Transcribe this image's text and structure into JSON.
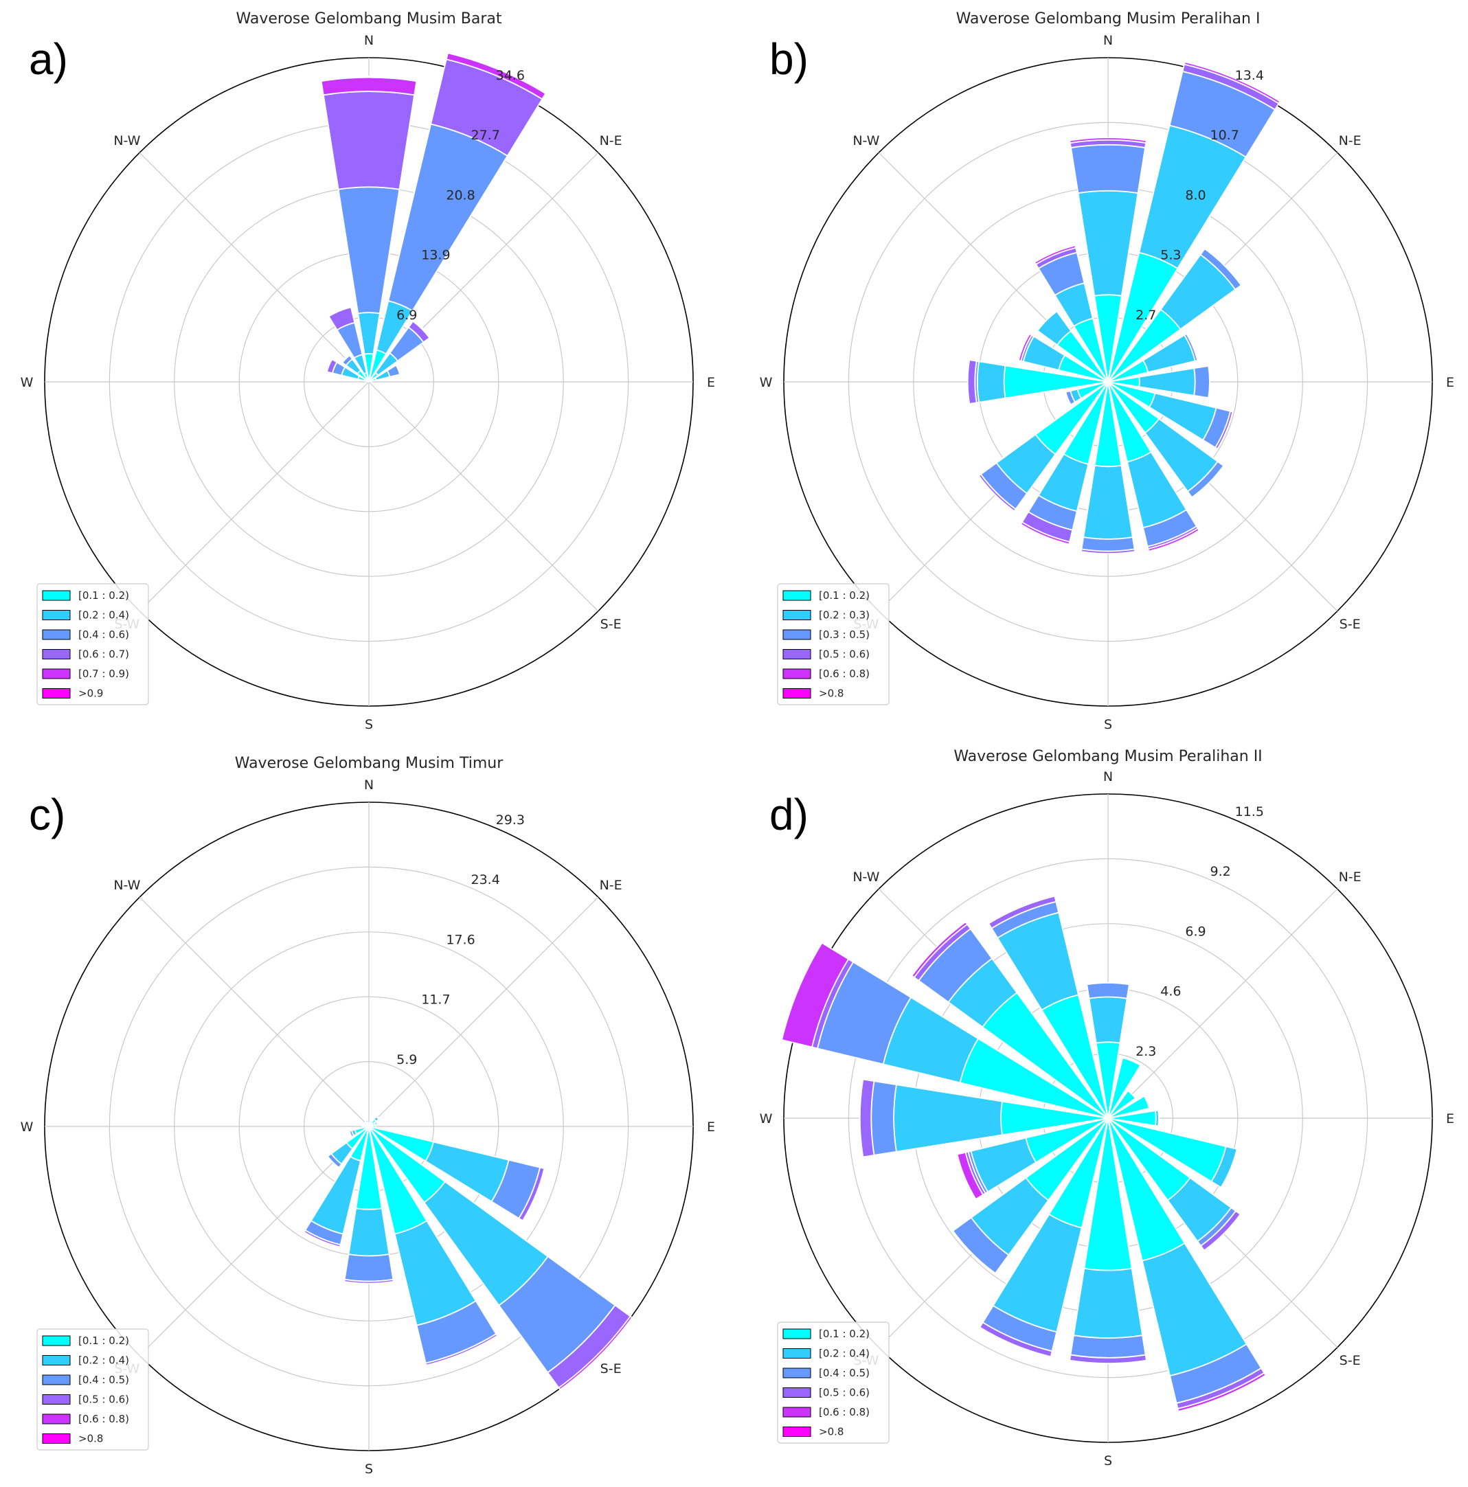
{
  "chart_data": [
    {
      "type": "windrose",
      "panel_label": "a)",
      "title": "Waverose Gelombang Musim Barat",
      "directions": [
        "N",
        "N-E",
        "E",
        "S-E",
        "S",
        "S-W",
        "W",
        "N-W"
      ],
      "sectors_deg": [
        0,
        22.5,
        45,
        67.5,
        90,
        112.5,
        135,
        157.5,
        180,
        202.5,
        225,
        247.5,
        270,
        292.5,
        315,
        337.5
      ],
      "radial_ticks": [
        "6.9",
        "13.9",
        "20.8",
        "27.7",
        "34.6"
      ],
      "r_max": 34.6,
      "bins": [
        "[0.1 : 0.2)",
        "[0.2 : 0.4)",
        "[0.4 : 0.6)",
        "[0.6 : 0.7)",
        "[0.7 : 0.9)",
        ">0.9"
      ],
      "bin_colors": [
        "#00ffff",
        "#33ccff",
        "#6699ff",
        "#9966ff",
        "#cc33ff",
        "#ff00ff"
      ],
      "cumulative": [
        [
          3.0,
          7.4,
          20.8,
          31.0,
          32.5,
          32.6
        ],
        [
          3.5,
          8.9,
          28.3,
          35.4,
          36.1,
          36.2
        ],
        [
          1.2,
          3.8,
          7.2,
          8.0,
          8.1,
          8.1
        ],
        [
          0.8,
          2.3,
          3.4,
          3.5,
          3.5,
          3.5
        ],
        [
          0,
          0,
          0,
          0,
          0,
          0
        ],
        [
          0,
          0,
          0,
          0,
          0,
          0
        ],
        [
          0,
          0,
          0,
          0,
          0,
          0
        ],
        [
          0,
          0,
          0,
          0,
          0,
          0
        ],
        [
          0,
          0,
          0,
          0,
          0,
          0
        ],
        [
          0,
          0,
          0,
          0,
          0,
          0
        ],
        [
          0,
          0,
          0,
          0,
          0,
          0
        ],
        [
          0,
          0,
          0,
          0,
          0,
          0
        ],
        [
          0,
          0,
          0,
          0,
          0,
          0
        ],
        [
          1.2,
          3.0,
          4.0,
          4.6,
          4.6,
          4.6
        ],
        [
          1.5,
          3.0,
          3.5,
          3.6,
          3.6,
          3.6
        ],
        [
          1.0,
          3.0,
          6.5,
          8.2,
          8.3,
          8.3
        ]
      ]
    },
    {
      "type": "windrose",
      "panel_label": "b)",
      "title": "Waverose Gelombang Musim Peralihan I",
      "directions": [
        "N",
        "N-E",
        "E",
        "S-E",
        "S",
        "S-W",
        "W",
        "N-W"
      ],
      "sectors_deg": [
        0,
        22.5,
        45,
        67.5,
        90,
        112.5,
        135,
        157.5,
        180,
        202.5,
        225,
        247.5,
        270,
        292.5,
        315,
        337.5
      ],
      "radial_ticks": [
        "2.7",
        "5.3",
        "8.0",
        "10.7",
        "13.4"
      ],
      "r_max": 13.4,
      "bins": [
        "[0.1 : 0.2)",
        "[0.2 : 0.3)",
        "[0.3 : 0.5)",
        "[0.5 : 0.6)",
        "[0.6 : 0.8)",
        ">0.8"
      ],
      "bin_colors": [
        "#00ffff",
        "#33ccff",
        "#6699ff",
        "#9966ff",
        "#cc33ff",
        "#ff00ff"
      ],
      "cumulative": [
        [
          3.6,
          7.9,
          9.8,
          10.0,
          10.1,
          10.1
        ],
        [
          5.5,
          10.9,
          13.2,
          13.5,
          13.6,
          13.6
        ],
        [
          3.7,
          6.5,
          6.8,
          6.8,
          6.8,
          6.8
        ],
        [
          1.7,
          3.7,
          3.8,
          3.8,
          3.8,
          3.8
        ],
        [
          1.3,
          3.6,
          4.2,
          4.2,
          4.2,
          4.2
        ],
        [
          2.0,
          4.6,
          5.2,
          5.3,
          5.3,
          5.3
        ],
        [
          2.6,
          5.6,
          5.9,
          5.9,
          5.9,
          5.9
        ],
        [
          3.4,
          6.2,
          7.0,
          7.1,
          7.2,
          7.2
        ],
        [
          3.5,
          6.5,
          7.0,
          7.1,
          7.1,
          7.1
        ],
        [
          3.5,
          5.5,
          6.3,
          6.8,
          6.9,
          6.9
        ],
        [
          3.7,
          5.7,
          6.5,
          6.6,
          6.6,
          6.6
        ],
        [
          1.3,
          1.6,
          1.8,
          1.8,
          1.8,
          1.8
        ],
        [
          4.3,
          5.4,
          5.5,
          5.8,
          5.8,
          5.8
        ],
        [
          2.1,
          3.6,
          3.7,
          3.7,
          3.8,
          3.8
        ],
        [
          2.6,
          3.6,
          3.6,
          3.6,
          3.6,
          3.6
        ],
        [
          2.7,
          4.2,
          5.5,
          5.7,
          5.8,
          5.8
        ]
      ]
    },
    {
      "type": "windrose",
      "panel_label": "c)",
      "title": "Waverose Gelombang Musim Timur",
      "directions": [
        "N",
        "N-E",
        "E",
        "S-E",
        "S",
        "S-W",
        "W",
        "N-W"
      ],
      "sectors_deg": [
        0,
        22.5,
        45,
        67.5,
        90,
        112.5,
        135,
        157.5,
        180,
        202.5,
        225,
        247.5,
        270,
        292.5,
        315,
        337.5
      ],
      "radial_ticks": [
        "5.9",
        "11.7",
        "17.6",
        "23.4",
        "29.3"
      ],
      "r_max": 29.3,
      "bins": [
        "[0.1 : 0.2)",
        "[0.2 : 0.4)",
        "[0.4 : 0.5)",
        "[0.5 : 0.6)",
        "[0.6 : 0.8)",
        ">0.8"
      ],
      "bin_colors": [
        "#00ffff",
        "#33ccff",
        "#6699ff",
        "#9966ff",
        "#cc33ff",
        "#ff00ff"
      ],
      "cumulative": [
        [
          0.3,
          0.3,
          0.3,
          0.3,
          0.3,
          0.3
        ],
        [
          0.5,
          0.6,
          0.6,
          0.6,
          0.6,
          0.6
        ],
        [
          0.8,
          1.1,
          1.2,
          1.2,
          1.2,
          1.2
        ],
        [
          0.6,
          0.8,
          0.8,
          0.8,
          0.8,
          0.8
        ],
        [
          0.6,
          0.6,
          0.6,
          0.6,
          0.6,
          0.6
        ],
        [
          6.0,
          13.0,
          15.9,
          16.3,
          16.3,
          16.3
        ],
        [
          8.5,
          20.0,
          27.5,
          29.2,
          29.4,
          29.4
        ],
        [
          10.0,
          18.5,
          22.0,
          22.2,
          22.2,
          22.2
        ],
        [
          7.5,
          11.7,
          14.0,
          14.2,
          14.2,
          14.2
        ],
        [
          3.2,
          10.0,
          11.0,
          11.2,
          11.2,
          11.2
        ],
        [
          2.5,
          4.2,
          4.6,
          4.6,
          4.6,
          4.6
        ],
        [
          1.3,
          1.6,
          1.8,
          1.8,
          1.8,
          1.8
        ],
        [
          0.5,
          0.6,
          0.6,
          0.6,
          0.6,
          0.6
        ],
        [
          0.4,
          0.5,
          0.5,
          0.5,
          0.5,
          0.5
        ],
        [
          0.3,
          0.5,
          0.5,
          0.5,
          0.5,
          0.5
        ],
        [
          0.6,
          0.7,
          0.7,
          0.7,
          0.7,
          0.7
        ]
      ]
    },
    {
      "type": "windrose",
      "panel_label": "d)",
      "title": "Waverose Gelombang Musim Peralihan II",
      "directions": [
        "N",
        "N-E",
        "E",
        "S-E",
        "S",
        "S-W",
        "W",
        "N-W"
      ],
      "sectors_deg": [
        0,
        22.5,
        45,
        67.5,
        90,
        112.5,
        135,
        157.5,
        180,
        202.5,
        225,
        247.5,
        270,
        292.5,
        315,
        337.5
      ],
      "radial_ticks": [
        "2.3",
        "4.6",
        "6.9",
        "9.2",
        "11.5"
      ],
      "r_max": 11.5,
      "bins": [
        "[0.1 : 0.2)",
        "[0.2 : 0.4)",
        "[0.4 : 0.5)",
        "[0.5 : 0.6)",
        "[0.6 : 0.8)",
        ">0.8"
      ],
      "bin_colors": [
        "#00ffff",
        "#33ccff",
        "#6699ff",
        "#9966ff",
        "#cc33ff",
        "#ff00ff"
      ],
      "cumulative": [
        [
          2.7,
          4.3,
          4.8,
          4.8,
          4.8,
          4.8
        ],
        [
          2.2,
          2.2,
          2.2,
          2.2,
          2.2,
          2.2
        ],
        [
          1.2,
          1.2,
          1.2,
          1.2,
          1.2,
          1.2
        ],
        [
          1.5,
          1.5,
          1.5,
          1.5,
          1.5,
          1.5
        ],
        [
          1.7,
          1.8,
          1.8,
          1.8,
          1.8,
          1.8
        ],
        [
          4.3,
          4.7,
          4.7,
          4.7,
          4.7,
          4.7
        ],
        [
          3.6,
          5.4,
          5.6,
          5.8,
          5.8,
          5.8
        ],
        [
          5.2,
          9.4,
          10.4,
          10.6,
          10.7,
          10.7
        ],
        [
          5.4,
          7.8,
          8.5,
          8.7,
          8.7,
          8.7
        ],
        [
          4.0,
          7.8,
          8.5,
          8.7,
          8.7,
          8.7
        ],
        [
          3.6,
          6.0,
          6.8,
          6.8,
          6.8,
          6.8
        ],
        [
          3.0,
          5.0,
          5.1,
          5.2,
          5.5,
          5.5
        ],
        [
          3.8,
          7.6,
          8.4,
          8.8,
          8.8,
          8.8
        ],
        [
          5.4,
          8.2,
          10.6,
          10.8,
          11.9,
          11.9
        ],
        [
          5.5,
          7.0,
          8.3,
          8.5,
          8.6,
          8.6
        ],
        [
          4.5,
          7.5,
          7.9,
          8.1,
          8.1,
          8.1
        ]
      ]
    }
  ]
}
